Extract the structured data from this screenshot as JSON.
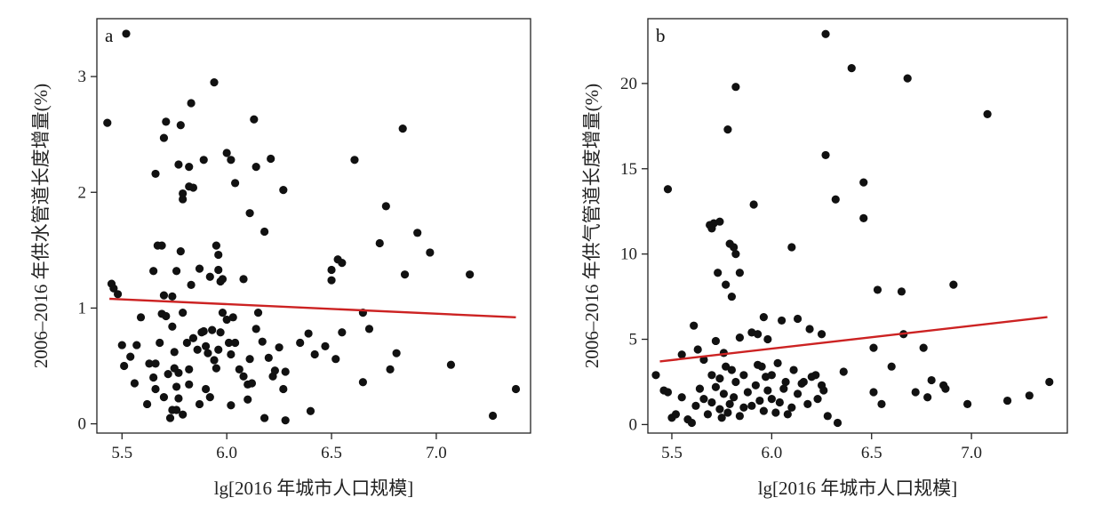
{
  "chart_data": [
    {
      "type": "scatter",
      "panel_label": "a",
      "xlabel": "lg[2016 年城市人口规模]",
      "ylabel": "2006–2016 年供水管道长度增量(%)",
      "xlim": [
        5.38,
        7.45
      ],
      "ylim": [
        -0.08,
        3.5
      ],
      "xticks": [
        5.5,
        6.0,
        6.5,
        7.0
      ],
      "yticks": [
        0,
        1,
        2,
        3
      ],
      "xtick_labels": [
        "5.5",
        "6.0",
        "6.5",
        "7.0"
      ],
      "ytick_labels": [
        "0",
        "1",
        "2",
        "3"
      ],
      "point_color": "#111111",
      "trend_color": "#cc2222",
      "trend_line": [
        [
          5.44,
          1.08
        ],
        [
          7.38,
          0.92
        ]
      ],
      "points": [
        [
          5.52,
          3.37
        ],
        [
          5.43,
          2.6
        ],
        [
          5.83,
          2.77
        ],
        [
          5.94,
          2.95
        ],
        [
          5.71,
          2.61
        ],
        [
          5.78,
          2.58
        ],
        [
          5.7,
          2.47
        ],
        [
          5.77,
          2.24
        ],
        [
          5.82,
          2.22
        ],
        [
          5.89,
          2.28
        ],
        [
          5.66,
          2.16
        ],
        [
          5.82,
          2.05
        ],
        [
          5.84,
          2.04
        ],
        [
          5.79,
          1.99
        ],
        [
          5.79,
          1.94
        ],
        [
          6.0,
          2.34
        ],
        [
          6.02,
          2.28
        ],
        [
          6.04,
          2.08
        ],
        [
          6.13,
          2.63
        ],
        [
          6.14,
          2.22
        ],
        [
          6.21,
          2.29
        ],
        [
          6.27,
          2.02
        ],
        [
          6.11,
          1.82
        ],
        [
          6.18,
          1.66
        ],
        [
          6.61,
          2.28
        ],
        [
          6.84,
          2.55
        ],
        [
          6.76,
          1.88
        ],
        [
          6.73,
          1.56
        ],
        [
          6.91,
          1.65
        ],
        [
          6.97,
          1.48
        ],
        [
          7.16,
          1.29
        ],
        [
          6.5,
          1.33
        ],
        [
          6.53,
          1.42
        ],
        [
          6.55,
          1.39
        ],
        [
          6.5,
          1.24
        ],
        [
          6.85,
          1.29
        ],
        [
          5.45,
          1.21
        ],
        [
          5.46,
          1.17
        ],
        [
          5.48,
          1.12
        ],
        [
          5.65,
          1.32
        ],
        [
          5.67,
          1.54
        ],
        [
          5.69,
          1.54
        ],
        [
          5.7,
          1.11
        ],
        [
          5.74,
          1.1
        ],
        [
          5.76,
          1.32
        ],
        [
          5.78,
          1.49
        ],
        [
          5.83,
          1.2
        ],
        [
          5.87,
          1.34
        ],
        [
          5.92,
          1.27
        ],
        [
          5.95,
          1.54
        ],
        [
          5.96,
          1.46
        ],
        [
          5.96,
          1.33
        ],
        [
          5.97,
          1.23
        ],
        [
          5.98,
          1.25
        ],
        [
          6.08,
          1.25
        ],
        [
          5.5,
          0.68
        ],
        [
          5.51,
          0.5
        ],
        [
          5.54,
          0.58
        ],
        [
          5.57,
          0.68
        ],
        [
          5.59,
          0.92
        ],
        [
          5.63,
          0.52
        ],
        [
          5.65,
          0.4
        ],
        [
          5.66,
          0.52
        ],
        [
          5.68,
          0.7
        ],
        [
          5.69,
          0.95
        ],
        [
          5.71,
          0.93
        ],
        [
          5.72,
          0.43
        ],
        [
          5.74,
          0.84
        ],
        [
          5.75,
          0.62
        ],
        [
          5.75,
          0.48
        ],
        [
          5.76,
          0.32
        ],
        [
          5.77,
          0.22
        ],
        [
          5.77,
          0.44
        ],
        [
          5.79,
          0.96
        ],
        [
          5.81,
          0.7
        ],
        [
          5.82,
          0.47
        ],
        [
          5.84,
          0.74
        ],
        [
          5.86,
          0.64
        ],
        [
          5.88,
          0.79
        ],
        [
          5.89,
          0.8
        ],
        [
          5.9,
          0.67
        ],
        [
          5.91,
          0.61
        ],
        [
          5.92,
          0.23
        ],
        [
          5.93,
          0.81
        ],
        [
          5.94,
          0.55
        ],
        [
          5.95,
          0.48
        ],
        [
          5.96,
          0.64
        ],
        [
          5.97,
          0.79
        ],
        [
          5.98,
          0.96
        ],
        [
          6.0,
          0.9
        ],
        [
          6.01,
          0.7
        ],
        [
          6.02,
          0.6
        ],
        [
          6.03,
          0.92
        ],
        [
          6.04,
          0.7
        ],
        [
          6.06,
          0.47
        ],
        [
          6.08,
          0.41
        ],
        [
          6.1,
          0.34
        ],
        [
          6.11,
          0.56
        ],
        [
          6.12,
          0.35
        ],
        [
          6.14,
          0.82
        ],
        [
          6.15,
          0.96
        ],
        [
          6.17,
          0.71
        ],
        [
          6.2,
          0.57
        ],
        [
          6.22,
          0.41
        ],
        [
          6.23,
          0.46
        ],
        [
          6.25,
          0.66
        ],
        [
          6.27,
          0.3
        ],
        [
          6.28,
          0.45
        ],
        [
          6.35,
          0.7
        ],
        [
          6.39,
          0.78
        ],
        [
          6.42,
          0.6
        ],
        [
          6.47,
          0.67
        ],
        [
          6.52,
          0.56
        ],
        [
          6.55,
          0.79
        ],
        [
          6.65,
          0.96
        ],
        [
          6.68,
          0.82
        ],
        [
          6.78,
          0.47
        ],
        [
          6.81,
          0.61
        ],
        [
          7.07,
          0.51
        ],
        [
          5.56,
          0.35
        ],
        [
          5.62,
          0.17
        ],
        [
          5.66,
          0.3
        ],
        [
          5.7,
          0.23
        ],
        [
          5.73,
          0.05
        ],
        [
          5.74,
          0.12
        ],
        [
          5.76,
          0.12
        ],
        [
          5.79,
          0.08
        ],
        [
          5.82,
          0.34
        ],
        [
          5.87,
          0.17
        ],
        [
          5.9,
          0.3
        ],
        [
          6.02,
          0.16
        ],
        [
          6.1,
          0.21
        ],
        [
          6.18,
          0.05
        ],
        [
          6.28,
          0.03
        ],
        [
          6.4,
          0.11
        ],
        [
          6.65,
          0.36
        ],
        [
          7.27,
          0.07
        ],
        [
          7.38,
          0.3
        ]
      ]
    },
    {
      "type": "scatter",
      "panel_label": "b",
      "xlabel": "lg[2016 年城市人口规模]",
      "ylabel": "2006–2016 年供气管道长度增量(%)",
      "xlim": [
        5.38,
        7.48
      ],
      "ylim": [
        -0.5,
        23.8
      ],
      "xticks": [
        5.5,
        6.0,
        6.5,
        7.0
      ],
      "yticks": [
        0,
        5,
        10,
        15,
        20
      ],
      "xtick_labels": [
        "5.5",
        "6.0",
        "6.5",
        "7.0"
      ],
      "ytick_labels": [
        "0",
        "5",
        "10",
        "15",
        "20"
      ],
      "point_color": "#111111",
      "trend_color": "#cc2222",
      "trend_line": [
        [
          5.44,
          3.7
        ],
        [
          7.38,
          6.3
        ]
      ],
      "points": [
        [
          6.27,
          22.9
        ],
        [
          6.4,
          20.9
        ],
        [
          6.68,
          20.3
        ],
        [
          5.82,
          19.8
        ],
        [
          7.08,
          18.2
        ],
        [
          5.78,
          17.3
        ],
        [
          6.27,
          15.8
        ],
        [
          6.46,
          14.2
        ],
        [
          5.48,
          13.8
        ],
        [
          6.32,
          13.2
        ],
        [
          5.91,
          12.9
        ],
        [
          6.46,
          12.1
        ],
        [
          5.69,
          11.7
        ],
        [
          5.71,
          11.8
        ],
        [
          5.74,
          11.9
        ],
        [
          5.7,
          11.5
        ],
        [
          5.79,
          10.6
        ],
        [
          5.81,
          10.4
        ],
        [
          5.82,
          10.0
        ],
        [
          6.1,
          10.4
        ],
        [
          5.73,
          8.9
        ],
        [
          5.77,
          8.2
        ],
        [
          5.84,
          8.9
        ],
        [
          5.8,
          7.5
        ],
        [
          6.53,
          7.9
        ],
        [
          6.65,
          7.8
        ],
        [
          6.91,
          8.2
        ],
        [
          5.61,
          5.8
        ],
        [
          5.72,
          4.9
        ],
        [
          5.76,
          4.2
        ],
        [
          5.84,
          5.1
        ],
        [
          5.9,
          5.4
        ],
        [
          5.93,
          5.3
        ],
        [
          5.96,
          6.3
        ],
        [
          5.98,
          5.0
        ],
        [
          6.05,
          6.1
        ],
        [
          6.13,
          6.2
        ],
        [
          6.19,
          5.6
        ],
        [
          6.25,
          5.3
        ],
        [
          6.66,
          5.3
        ],
        [
          6.76,
          4.5
        ],
        [
          6.51,
          4.5
        ],
        [
          5.55,
          4.1
        ],
        [
          5.63,
          4.4
        ],
        [
          5.66,
          3.8
        ],
        [
          5.7,
          2.9
        ],
        [
          5.74,
          2.7
        ],
        [
          5.77,
          3.4
        ],
        [
          5.8,
          3.2
        ],
        [
          5.86,
          2.9
        ],
        [
          5.93,
          3.5
        ],
        [
          5.95,
          3.4
        ],
        [
          5.97,
          2.8
        ],
        [
          6.0,
          2.9
        ],
        [
          6.03,
          3.6
        ],
        [
          6.07,
          2.5
        ],
        [
          6.11,
          3.2
        ],
        [
          6.16,
          2.5
        ],
        [
          6.22,
          2.9
        ],
        [
          6.25,
          2.3
        ],
        [
          6.36,
          3.1
        ],
        [
          6.51,
          1.9
        ],
        [
          6.6,
          3.4
        ],
        [
          6.78,
          1.6
        ],
        [
          6.8,
          2.6
        ],
        [
          6.86,
          2.3
        ],
        [
          6.87,
          2.1
        ],
        [
          6.98,
          1.2
        ],
        [
          7.18,
          1.4
        ],
        [
          7.29,
          1.7
        ],
        [
          7.39,
          2.5
        ],
        [
          5.42,
          2.9
        ],
        [
          5.46,
          2.0
        ],
        [
          5.48,
          1.9
        ],
        [
          5.5,
          0.4
        ],
        [
          5.52,
          0.6
        ],
        [
          5.55,
          1.6
        ],
        [
          5.58,
          0.3
        ],
        [
          5.6,
          0.1
        ],
        [
          5.62,
          1.1
        ],
        [
          5.64,
          2.1
        ],
        [
          5.66,
          1.5
        ],
        [
          5.68,
          0.6
        ],
        [
          5.7,
          1.3
        ],
        [
          5.72,
          2.2
        ],
        [
          5.74,
          0.9
        ],
        [
          5.75,
          0.4
        ],
        [
          5.76,
          1.8
        ],
        [
          5.78,
          0.7
        ],
        [
          5.79,
          1.2
        ],
        [
          5.81,
          1.6
        ],
        [
          5.82,
          2.5
        ],
        [
          5.84,
          0.5
        ],
        [
          5.86,
          1.0
        ],
        [
          5.88,
          1.9
        ],
        [
          5.9,
          1.1
        ],
        [
          5.92,
          2.3
        ],
        [
          5.94,
          1.4
        ],
        [
          5.96,
          0.8
        ],
        [
          5.98,
          2.0
        ],
        [
          6.0,
          1.5
        ],
        [
          6.02,
          0.7
        ],
        [
          6.04,
          1.3
        ],
        [
          6.06,
          2.1
        ],
        [
          6.08,
          0.6
        ],
        [
          6.1,
          1.0
        ],
        [
          6.13,
          1.8
        ],
        [
          6.15,
          2.4
        ],
        [
          6.18,
          1.2
        ],
        [
          6.2,
          2.8
        ],
        [
          6.23,
          1.5
        ],
        [
          6.26,
          2.0
        ],
        [
          6.28,
          0.5
        ],
        [
          6.33,
          0.1
        ],
        [
          6.55,
          1.2
        ],
        [
          6.72,
          1.9
        ]
      ]
    }
  ]
}
